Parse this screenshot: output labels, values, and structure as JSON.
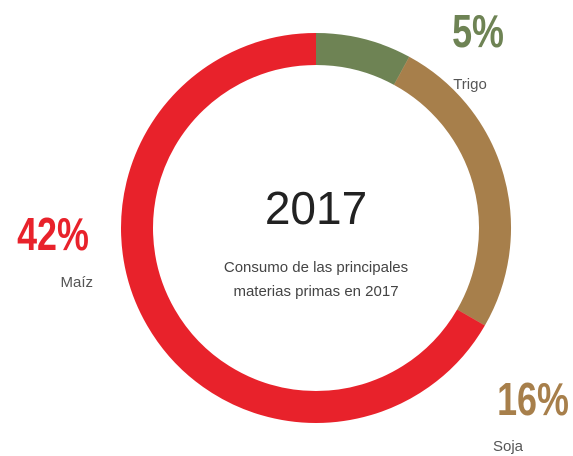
{
  "chart_data": {
    "type": "donut",
    "title": "2017",
    "subtitle": [
      "Consumo de las principales",
      "materias primas en 2017"
    ],
    "categories": [
      "Trigo",
      "Soja",
      "Maíz"
    ],
    "values": [
      5,
      16,
      42
    ],
    "value_labels": [
      "5%",
      "16%",
      "42%"
    ],
    "colors": [
      "#6e8354",
      "#a77f4b",
      "#e8222b"
    ]
  }
}
